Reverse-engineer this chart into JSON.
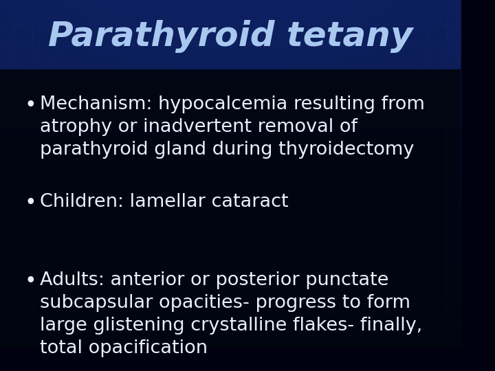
{
  "title": "Parathyroid tetany",
  "title_color": "#a8c8f0",
  "title_fontsize": 36,
  "title_bold": true,
  "bullet_points": [
    "Mechanism: hypocalcemia resulting from\natrophy or inadvertent removal of\nparathyroid gland during thyroidectomy",
    "Children: lamellar cataract",
    "Adults: anterior or posterior punctate\nsubcapsular opacities- progress to form\nlarge glistening crystalline flakes- finally,\ntotal opacification"
  ],
  "bullet_color": "#e8f0ff",
  "bullet_fontsize": 19.5,
  "bg_top_color": "#0a1a4a",
  "bg_bottom_color": "#000510",
  "bg_center_color": "#000008",
  "title_bg_color": "#1a2a6a",
  "grid_line_color": "#1e3a7a",
  "fig_width": 7.2,
  "fig_height": 5.4,
  "dpi": 100
}
